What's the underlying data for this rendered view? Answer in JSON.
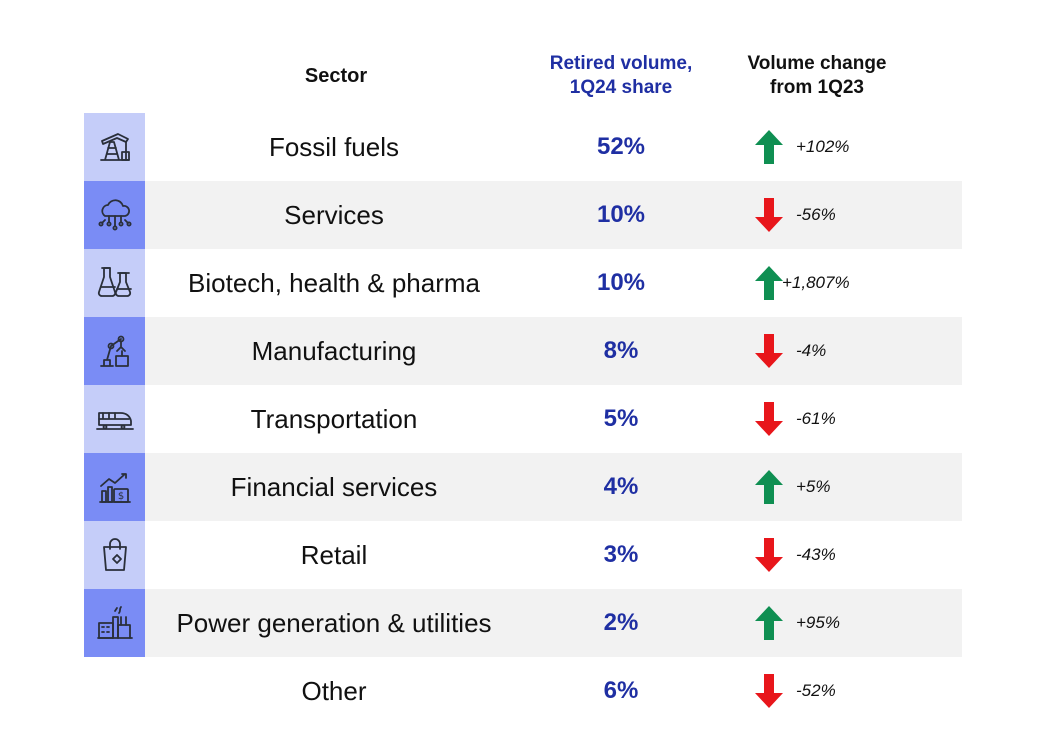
{
  "headers": {
    "sector": "Sector",
    "share_line1": "Retired volume,",
    "share_line2": "1Q24 share",
    "change_line1": "Volume change",
    "change_line2": "from 1Q23"
  },
  "colors": {
    "accent_blue": "#1f2fa3",
    "icon_bg_light": "#c5cdf9",
    "icon_bg_dark": "#7a8cf5",
    "up_green": "#0f8f52",
    "down_red": "#e8161b",
    "row_shade": "#f2f2f2"
  },
  "chart_data": {
    "type": "table",
    "columns": [
      "Sector",
      "Retired volume, 1Q24 share",
      "Volume change from 1Q23"
    ],
    "rows": [
      {
        "sector": "Fossil fuels",
        "share": "52%",
        "change": "+102%",
        "direction": "up",
        "icon": "oil-pump-icon"
      },
      {
        "sector": "Services",
        "share": "10%",
        "change": "-56%",
        "direction": "down",
        "icon": "cloud-network-icon"
      },
      {
        "sector": "Biotech, health & pharma",
        "share": "10%",
        "change": "+1,807%",
        "direction": "up",
        "icon": "lab-flask-icon"
      },
      {
        "sector": "Manufacturing",
        "share": "8%",
        "change": "-4%",
        "direction": "down",
        "icon": "robotic-arm-icon"
      },
      {
        "sector": "Transportation",
        "share": "5%",
        "change": "-61%",
        "direction": "down",
        "icon": "train-icon"
      },
      {
        "sector": "Financial services",
        "share": "4%",
        "change": "+5%",
        "direction": "up",
        "icon": "finance-chart-icon"
      },
      {
        "sector": "Retail",
        "share": "3%",
        "change": "-43%",
        "direction": "down",
        "icon": "shopping-bag-icon"
      },
      {
        "sector": "Power generation & utilities",
        "share": "2%",
        "change": "+95%",
        "direction": "up",
        "icon": "power-plant-icon"
      },
      {
        "sector": "Other",
        "share": "6%",
        "change": "-52%",
        "direction": "down",
        "icon": ""
      }
    ]
  }
}
